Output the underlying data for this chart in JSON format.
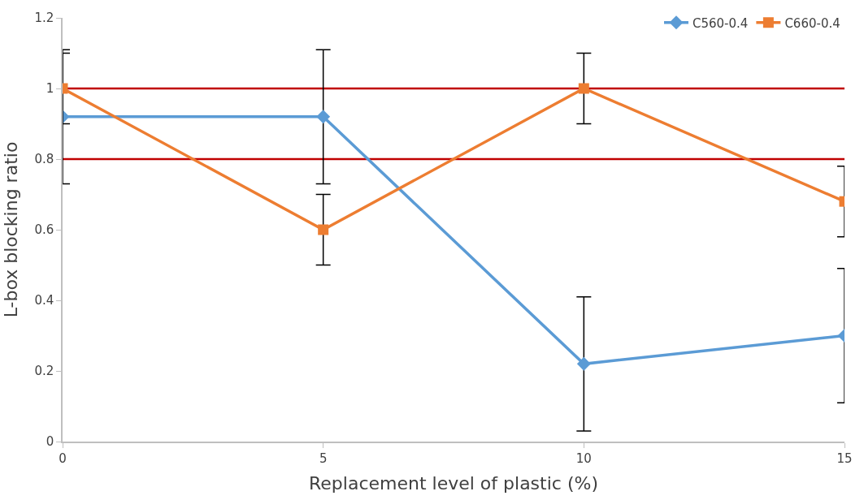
{
  "chart_data": {
    "type": "line",
    "xlabel": "Replacement level of plastic (%)",
    "ylabel": "L-box blocking ratio",
    "x": [
      0,
      5,
      10,
      15
    ],
    "series": [
      {
        "name": "C560-0.4",
        "color": "#5b9bd5",
        "marker": "diamond",
        "values": [
          0.92,
          0.92,
          0.22,
          0.3
        ],
        "errors": [
          0.19,
          0.19,
          0.19,
          0.19
        ]
      },
      {
        "name": "C660-0.4",
        "color": "#ed7d31",
        "marker": "square",
        "values": [
          1.0,
          0.6,
          1.0,
          0.68
        ],
        "errors": [
          0.1,
          0.1,
          0.1,
          0.1
        ]
      }
    ],
    "xlim": [
      0,
      15
    ],
    "xticks": [
      0,
      5,
      10,
      15
    ],
    "ylim": [
      0,
      1.2
    ],
    "yticks": [
      0,
      0.2,
      0.4,
      0.6,
      0.8,
      1,
      1.2
    ],
    "ref_lines": [
      {
        "axis": "y",
        "value": 1.0,
        "color": "#c00000"
      },
      {
        "axis": "y",
        "value": 0.8,
        "color": "#c00000"
      }
    ],
    "legend": "top right",
    "line_style": "solid"
  }
}
